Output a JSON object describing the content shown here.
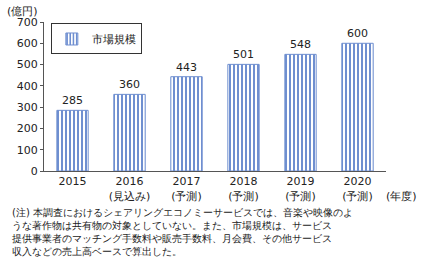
{
  "chart_data": {
    "type": "bar",
    "categories": [
      "2015",
      "2016\n(見込み)",
      "2017\n(予測)",
      "2018\n(予測)",
      "2019\n(予測)",
      "2020\n(予測)"
    ],
    "series": [
      {
        "name": "市場規模",
        "color": "#6f8fd0",
        "values": [
          285,
          360,
          443,
          501,
          548,
          600
        ]
      }
    ],
    "x_label": "(年度)",
    "y_label": "(億円)",
    "ylim": [
      0,
      700
    ],
    "yticks": [
      0,
      100,
      200,
      300,
      400,
      500,
      600,
      700
    ],
    "grid": false,
    "legend": "top-left",
    "data_labels": true,
    "note": "(注) 本調査におけるシェアリングエコノミーサービスでは、音楽や映像のよ\nうな著作物は共有物の対象としていない。また、市場規模は、サービス\n提供事業者のマッチング手数料や販売手数料、月会費、その他サービス\n収入などの売上高ベースで算出した。"
  }
}
